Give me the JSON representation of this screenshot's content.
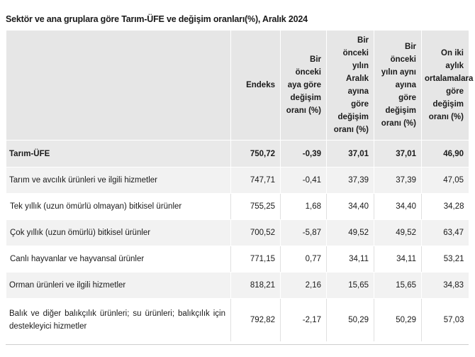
{
  "title": "Sektör ve ana gruplara göre Tarım-ÜFE ve değişim oranları(%), Aralık 2024",
  "columns": [
    {
      "label": ""
    },
    {
      "label": "Endeks"
    },
    {
      "label": "Bir önceki aya göre değişim oranı (%)"
    },
    {
      "label": "Bir önceki yılın Aralık ayına göre değişim oranı (%)"
    },
    {
      "label": "Bir önceki yılın aynı ayına göre değişim oranı (%)"
    },
    {
      "label": "On iki aylık ortalamalara göre değişim oranı (%)"
    }
  ],
  "rows": [
    {
      "label": "Tarım-ÜFE",
      "endeks": "750,72",
      "aylik": "-0,39",
      "aralik": "37,01",
      "yillik": "37,01",
      "ortalama": "46,90"
    },
    {
      "label": "Tarım ve avcılık ürünleri ve ilgili hizmetler",
      "endeks": "747,71",
      "aylik": "-0,41",
      "aralik": "37,39",
      "yillik": "37,39",
      "ortalama": "47,05"
    },
    {
      "label": "Tek yıllık (uzun ömürlü olmayan) bitkisel ürünler",
      "endeks": "755,25",
      "aylik": "1,68",
      "aralik": "34,40",
      "yillik": "34,40",
      "ortalama": "34,28"
    },
    {
      "label": "Çok yıllık (uzun ömürlü) bitkisel ürünler",
      "endeks": "700,52",
      "aylik": "-5,87",
      "aralik": "49,52",
      "yillik": "49,52",
      "ortalama": "63,47"
    },
    {
      "label": "Canlı hayvanlar ve hayvansal ürünler",
      "endeks": "771,15",
      "aylik": "0,77",
      "aralik": "34,11",
      "yillik": "34,11",
      "ortalama": "53,21"
    },
    {
      "label": "Orman ürünleri ve ilgili hizmetler",
      "endeks": "818,21",
      "aylik": "2,16",
      "aralik": "15,65",
      "yillik": "15,65",
      "ortalama": "34,83"
    },
    {
      "label": "Balık ve diğer balıkçılık ürünleri; su ürünleri; balıkçılık için destekleyici hizmetler",
      "endeks": "792,82",
      "aylik": "-2,17",
      "aralik": "50,29",
      "yillik": "50,29",
      "ortalama": "57,03"
    }
  ]
}
